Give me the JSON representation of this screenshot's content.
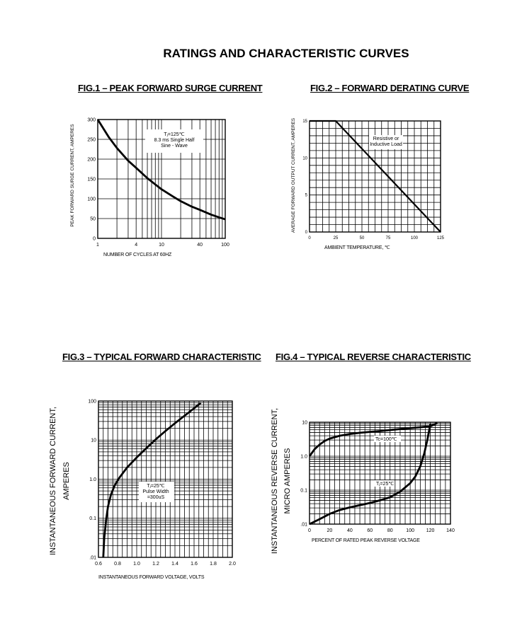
{
  "page_title": "RATINGS AND CHARACTERISTIC CURVES",
  "chart_data": [
    {
      "id": "fig1",
      "type": "line",
      "title": "FIG.1 – PEAK FORWARD SURGE CURRENT",
      "xlabel": "NUMBER OF CYCLES AT 60HZ",
      "ylabel": "PEAK FORWARD SURGE CURRENT,    AMPERES",
      "xscale": "log",
      "xlim": [
        1,
        100
      ],
      "ylim": [
        0,
        300
      ],
      "xticks": [
        1,
        4,
        10,
        40,
        100
      ],
      "xtick_labels": [
        "1",
        "4",
        "10",
        "40",
        "100"
      ],
      "yticks": [
        0,
        50,
        100,
        150,
        200,
        250,
        300
      ],
      "ytick_labels": [
        "0",
        "50",
        "100",
        "150",
        "200",
        "250",
        "300"
      ],
      "grid": true,
      "annotation": [
        "Tⱼ=125℃",
        "8.3 ms Single Half",
        "Sine - Wave"
      ],
      "series": [
        {
          "x": [
            1,
            1.5,
            2,
            3,
            4,
            6,
            8,
            10,
            15,
            20,
            30,
            40,
            60,
            80,
            100
          ],
          "y": [
            300,
            255,
            228,
            196,
            178,
            152,
            136,
            124,
            106,
            94,
            80,
            72,
            60,
            53,
            48
          ]
        }
      ]
    },
    {
      "id": "fig2",
      "type": "line",
      "title": "FIG.2 – FORWARD DERATING CURVE",
      "xlabel": "AMBIENT  TEMPERATURE, ℃",
      "ylabel": "AVERAGE FORWARD OUTPUT CURRENT, AMPERES",
      "xlim": [
        0,
        125
      ],
      "ylim": [
        0,
        15
      ],
      "xticks": [
        0,
        25,
        50,
        75,
        100,
        125
      ],
      "xtick_labels": [
        "0",
        "25",
        "50",
        "75",
        "100",
        "125"
      ],
      "yticks": [
        0,
        5,
        10,
        15
      ],
      "ytick_labels": [
        "0",
        "5",
        "10",
        "15"
      ],
      "grid": true,
      "annotation": [
        "Resistive or",
        "Inductive Load"
      ],
      "series": [
        {
          "x": [
            0,
            25,
            125
          ],
          "y": [
            15,
            15,
            0
          ]
        }
      ]
    },
    {
      "id": "fig3",
      "type": "line",
      "title": "FIG.3 – TYPICAL FORWARD CHARACTERISTIC",
      "xlabel": "INSTANTANEOUS FORWARD VOLTAGE,  VOLTS",
      "ylabel_lines": [
        "INSTANTANEOUS FORWARD CURRENT,",
        "AMPERES"
      ],
      "yscale": "log",
      "xlim": [
        0.6,
        2.0
      ],
      "ylim": [
        0.01,
        100
      ],
      "xticks": [
        0.6,
        0.8,
        1.0,
        1.2,
        1.4,
        1.6,
        1.8,
        2.0
      ],
      "xtick_labels": [
        "0.6",
        "0.8",
        "1.0",
        "1.2",
        "1.4",
        "1.6",
        "1.8",
        "2.0"
      ],
      "yticks": [
        0.01,
        0.1,
        1,
        10,
        100
      ],
      "ytick_labels": [
        ".01",
        "0.1",
        "1.0",
        "10",
        "100"
      ],
      "grid": true,
      "annotation": [
        "Tⱼ=25℃",
        "Pulse Width",
        "=300uS"
      ],
      "series": [
        {
          "x": [
            0.65,
            0.66,
            0.68,
            0.7,
            0.73,
            0.77,
            0.82,
            0.9,
            1.0,
            1.1,
            1.2,
            1.3,
            1.4,
            1.5,
            1.6,
            1.67
          ],
          "y": [
            0.01,
            0.03,
            0.09,
            0.2,
            0.4,
            0.7,
            1.1,
            2.0,
            3.6,
            6.2,
            10.5,
            17,
            27,
            42,
            65,
            90
          ]
        }
      ]
    },
    {
      "id": "fig4",
      "type": "line",
      "title": "FIG.4 – TYPICAL REVERSE CHARACTERISTIC",
      "xlabel": "PERCENT OF RATED PEAK REVERSE VOLTAGE",
      "ylabel_lines": [
        "INSTANTANEOUS REVERSE CURRENT,",
        "MICRO AMPERES"
      ],
      "yscale": "log",
      "xlim": [
        0,
        140
      ],
      "ylim": [
        0.01,
        10
      ],
      "xticks": [
        0,
        20,
        40,
        60,
        80,
        100,
        120,
        140
      ],
      "xtick_labels": [
        "0",
        "20",
        "40",
        "60",
        "80",
        "100",
        "120",
        "140"
      ],
      "yticks": [
        0.01,
        0.1,
        1,
        10
      ],
      "ytick_labels": [
        ".01",
        "0.1",
        "1.0",
        "10"
      ],
      "grid": true,
      "series": [
        {
          "name": "Tc=100℃",
          "x": [
            0,
            5,
            10,
            15,
            20,
            30,
            40,
            50,
            60,
            70,
            80,
            90,
            100,
            110,
            120,
            127
          ],
          "y": [
            1.0,
            1.6,
            2.2,
            2.8,
            3.3,
            4.0,
            4.5,
            4.9,
            5.2,
            5.5,
            5.9,
            6.3,
            6.7,
            7.1,
            7.6,
            9.5
          ]
        },
        {
          "name": "Tⱼ=25℃",
          "x": [
            0,
            10,
            20,
            30,
            40,
            50,
            60,
            70,
            80,
            90,
            100,
            105,
            110,
            114,
            117,
            119,
            120
          ],
          "y": [
            0.01,
            0.014,
            0.02,
            0.026,
            0.031,
            0.036,
            0.042,
            0.05,
            0.062,
            0.09,
            0.16,
            0.25,
            0.5,
            1.2,
            3.0,
            6.0,
            9.0
          ]
        }
      ]
    }
  ]
}
